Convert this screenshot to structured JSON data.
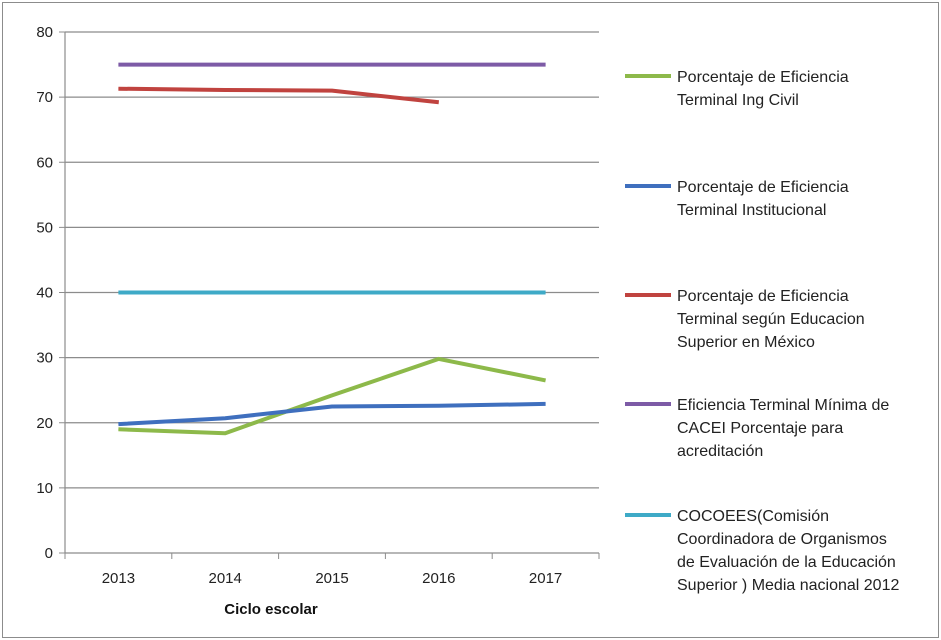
{
  "chart_data": {
    "type": "line",
    "xlabel": "Ciclo escolar",
    "ylabel": "",
    "categories": [
      "2013",
      "2014",
      "2015",
      "2016",
      "2017"
    ],
    "ylim": [
      0,
      80
    ],
    "yticks": [
      0,
      10,
      20,
      30,
      40,
      50,
      60,
      70,
      80
    ],
    "grid": true,
    "legend_position": "right",
    "series": [
      {
        "name": "Porcentaje de Eficiencia Terminal Ing Civil",
        "legend_lines": [
          "Porcentaje de Eficiencia",
          "Terminal Ing Civil"
        ],
        "color": "#8db94a",
        "values": [
          19.0,
          18.4,
          24.2,
          29.8,
          26.5
        ]
      },
      {
        "name": "Porcentaje de Eficiencia Terminal Institucional",
        "legend_lines": [
          "Porcentaje de Eficiencia",
          "Terminal Institucional"
        ],
        "color": "#3f6fbe",
        "values": [
          19.8,
          20.7,
          22.5,
          22.6,
          22.9
        ]
      },
      {
        "name": "Porcentaje de Eficiencia Terminal según Educacion Superior en México",
        "legend_lines": [
          "Porcentaje de Eficiencia",
          "Terminal según  Educacion",
          "Superior en México"
        ],
        "color": "#c0433f",
        "values": [
          71.3,
          71.1,
          71.0,
          69.2,
          null
        ]
      },
      {
        "name": "Eficiencia Terminal Mínima de CACEI Porcentaje para acreditación",
        "legend_lines": [
          "Eficiencia Terminal Mínima de",
          "CACEI Porcentaje para",
          "acreditación"
        ],
        "color": "#7d5ba6",
        "values": [
          75,
          75,
          75,
          75,
          75
        ]
      },
      {
        "name": "COCOEES(Comisión Coordinadora de Organismos de Evaluación de la Educación Superior ) Media nacional 2012",
        "legend_lines": [
          "COCOEES(Comisión",
          "Coordinadora de Organismos",
          "de Evaluación de la Educación",
          "Superior ) Media nacional  2012"
        ],
        "color": "#3eaac7",
        "values": [
          40,
          40,
          40,
          40,
          40
        ]
      }
    ]
  }
}
